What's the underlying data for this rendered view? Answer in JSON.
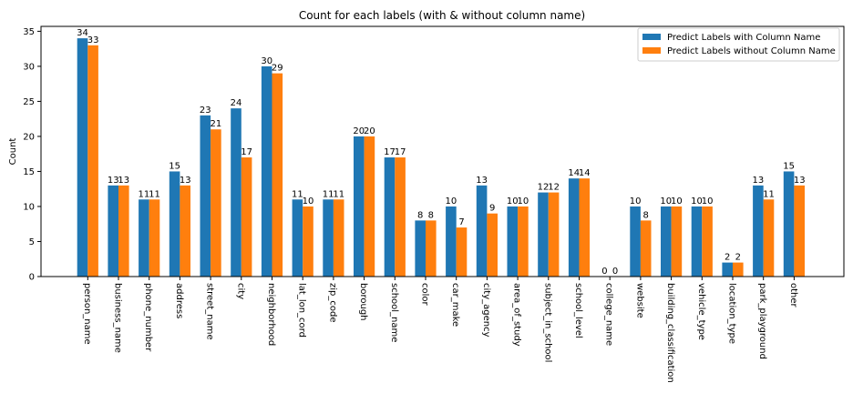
{
  "chart_data": {
    "type": "bar",
    "title": "Count for each labels (with & without column name)",
    "xlabel": "",
    "ylabel": "Count",
    "ylim": [
      0,
      35.7
    ],
    "yticks": [
      0,
      5,
      10,
      15,
      20,
      25,
      30,
      35
    ],
    "grid": false,
    "legend_position": "top-right",
    "categories": [
      "person_name",
      "business_name",
      "phone_number",
      "address",
      "street_name",
      "city",
      "neighborhood",
      "lat_lon_cord",
      "zip_code",
      "borough",
      "school_name",
      "color",
      "car_make",
      "city_agency",
      "area_of_study",
      "subject_in_school",
      "school_level",
      "college_name",
      "website",
      "building_classification",
      "vehicle_type",
      "location_type",
      "park_playground",
      "other"
    ],
    "series": [
      {
        "name": "Predict Labels with Column Name",
        "color": "#1f77b4",
        "values": [
          34,
          13,
          11,
          15,
          23,
          24,
          30,
          11,
          11,
          20,
          17,
          8,
          10,
          13,
          10,
          12,
          14,
          0,
          10,
          10,
          10,
          2,
          13,
          15
        ]
      },
      {
        "name": "Predict Labels without Column Name",
        "color": "#ff7f0e",
        "values": [
          33,
          13,
          11,
          13,
          21,
          17,
          29,
          10,
          11,
          20,
          17,
          8,
          7,
          9,
          10,
          12,
          14,
          0,
          8,
          10,
          10,
          2,
          11,
          13
        ]
      }
    ]
  }
}
